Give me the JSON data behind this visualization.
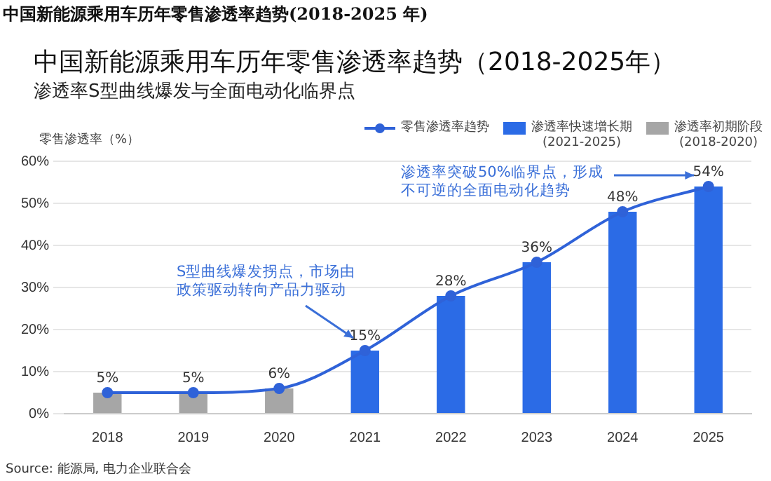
{
  "chart_data": {
    "type": "bar",
    "title": "中国新能源乘用车历年零售渗透率趋势（2018-2025年）",
    "subtitle": "渗透率S型曲线爆发与全面电动化临界点",
    "ylabel": "零售渗透率（%）",
    "categories": [
      "2018",
      "2019",
      "2020",
      "2021",
      "2022",
      "2023",
      "2024",
      "2025"
    ],
    "series": [
      {
        "name": "零售渗透率趋势",
        "type": "line",
        "color": "#2f62d8",
        "values": [
          5,
          5,
          6,
          15,
          28,
          36,
          48,
          54
        ],
        "value_labels": [
          "5%",
          "5%",
          "6%",
          "15%",
          "28%",
          "36%",
          "48%",
          "54%"
        ]
      },
      {
        "name": "渗透率快速增长期 (2021-2025)",
        "color": "#2b6be6",
        "values": [
          null,
          null,
          null,
          15,
          28,
          36,
          48,
          54
        ]
      },
      {
        "name": "渗透率初期阶段 (2018-2020)",
        "color": "#a6a6a6",
        "values": [
          5,
          5,
          6,
          null,
          null,
          null,
          null,
          null
        ]
      }
    ],
    "ylim": [
      0,
      60
    ],
    "yticks": [
      {
        "value": 0,
        "label": "0%"
      },
      {
        "value": 10,
        "label": "10%"
      },
      {
        "value": 20,
        "label": "20%"
      },
      {
        "value": 30,
        "label": "30%"
      },
      {
        "value": 40,
        "label": "40%"
      },
      {
        "value": 50,
        "label": "50%"
      },
      {
        "value": 60,
        "label": "60%"
      }
    ],
    "grid": "y",
    "legend": "top right",
    "marker": "circle",
    "annotations": [
      "中国新能源乘用车历年零售渗透率趋势(2018-2025 年)",
      "S型曲线爆发拐点，市场由政策驱动转向产品力驱动",
      "渗透率突破50%临界点，形成不可逆的全面电动化趋势",
      "Source: 能源局, 电力企业联合会"
    ]
  }
}
